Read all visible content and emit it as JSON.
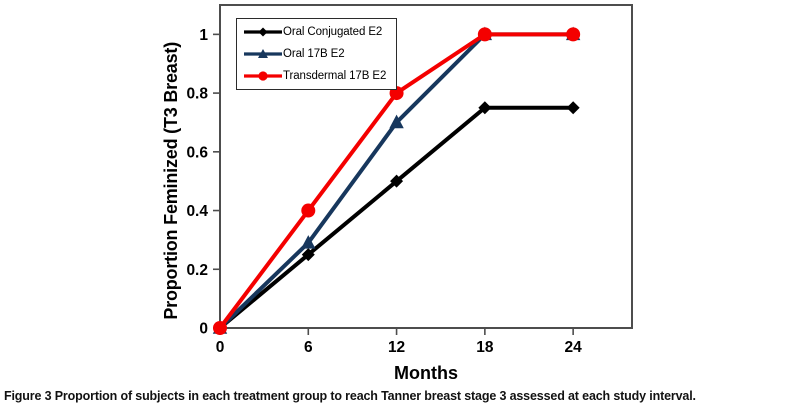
{
  "figure": {
    "caption_label": "Figure 3",
    "caption_text": "Proportion of subjects in each treatment group to reach Tanner breast stage 3 assessed at each study interval."
  },
  "chart_data": {
    "type": "line",
    "title": "",
    "xlabel": "Months",
    "ylabel": "Proportion Feminized (T3 Breast)",
    "x": [
      0,
      6,
      12,
      18,
      24
    ],
    "x_tick_labels": [
      "0",
      "6",
      "12",
      "18",
      "24"
    ],
    "y_ticks": [
      0,
      0.2,
      0.4,
      0.6,
      0.8,
      1
    ],
    "y_tick_labels": [
      "0",
      "0.2",
      "0.4",
      "0.6",
      "0.8",
      "1"
    ],
    "xlim": [
      0,
      28
    ],
    "ylim": [
      0,
      1.1
    ],
    "grid": false,
    "legend_position": "inside top-left",
    "series": [
      {
        "name": "Oral Conjugated E2",
        "marker": "diamond",
        "color": "#000000",
        "values": [
          0,
          0.25,
          0.5,
          0.75,
          0.75
        ]
      },
      {
        "name": "Oral 17B E2",
        "marker": "triangle",
        "color": "#17375D",
        "values": [
          0,
          0.29,
          0.7,
          1,
          1
        ]
      },
      {
        "name": "Transdermal 17B E2",
        "marker": "circle",
        "color": "#F40000",
        "values": [
          0,
          0.4,
          0.8,
          1,
          1
        ]
      }
    ]
  }
}
